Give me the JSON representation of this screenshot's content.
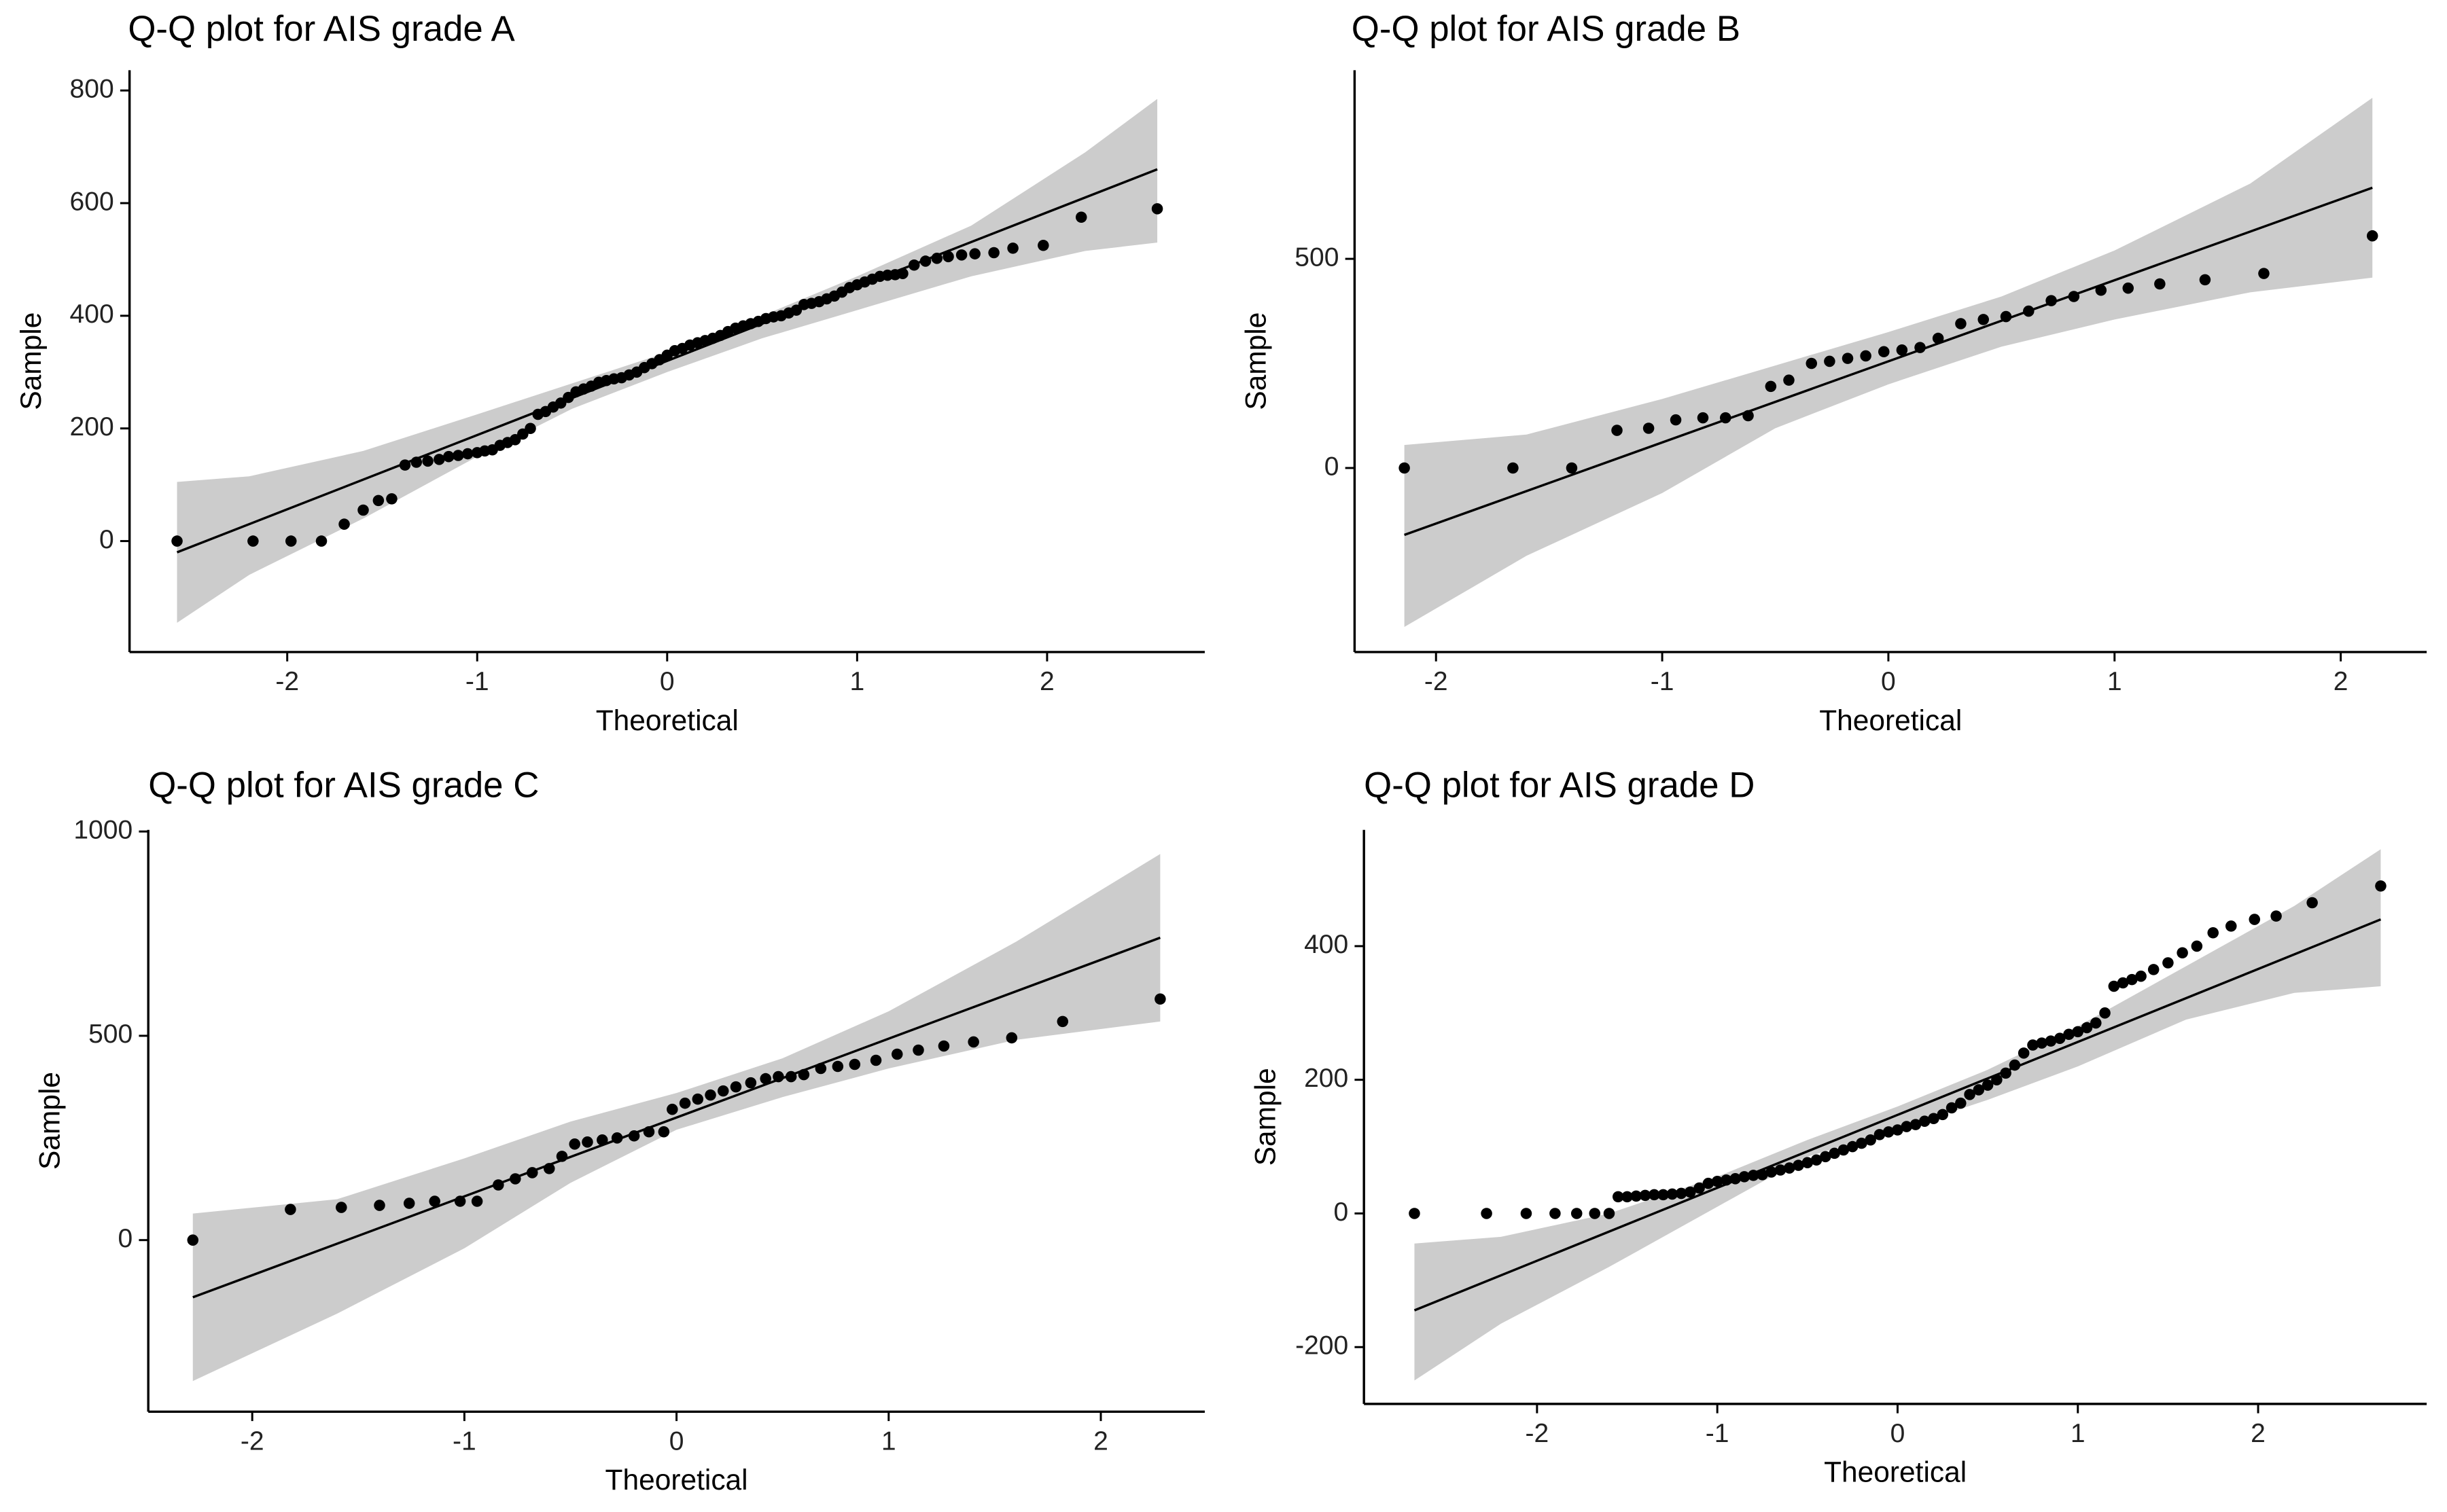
{
  "chart_data": [
    {
      "type": "scatter",
      "title": "Q-Q plot for AIS grade A",
      "x_label": "Theoretical",
      "y_label": "Sample",
      "xlim": [
        -2.83,
        2.83
      ],
      "ylim": [
        -197,
        836
      ],
      "xticks": [
        -2,
        -1,
        0,
        1,
        2
      ],
      "yticks": [
        0,
        200,
        400,
        600,
        800
      ],
      "point_color": "#000000",
      "line_color": "#000000",
      "band_color": "#cccccc",
      "points": {
        "x": [
          -2.58,
          -2.18,
          -1.98,
          -1.82,
          -1.7,
          -1.6,
          -1.52,
          -1.45,
          -1.38,
          -1.32,
          -1.26,
          -1.2,
          -1.15,
          -1.1,
          -1.05,
          -1.0,
          -0.96,
          -0.92,
          -0.88,
          -0.84,
          -0.8,
          -0.76,
          -0.72,
          -0.68,
          -0.64,
          -0.6,
          -0.56,
          -0.52,
          -0.48,
          -0.44,
          -0.4,
          -0.36,
          -0.32,
          -0.28,
          -0.24,
          -0.2,
          -0.16,
          -0.12,
          -0.08,
          -0.04,
          0,
          0.04,
          0.08,
          0.12,
          0.16,
          0.2,
          0.24,
          0.28,
          0.32,
          0.36,
          0.4,
          0.44,
          0.48,
          0.52,
          0.56,
          0.6,
          0.64,
          0.68,
          0.72,
          0.76,
          0.8,
          0.84,
          0.88,
          0.92,
          0.96,
          1.0,
          1.04,
          1.08,
          1.12,
          1.16,
          1.2,
          1.24,
          1.3,
          1.36,
          1.42,
          1.48,
          1.55,
          1.62,
          1.72,
          1.82,
          1.98,
          2.18,
          2.58
        ],
        "y": [
          0,
          0,
          0,
          0,
          30,
          55,
          72,
          75,
          135,
          140,
          142,
          145,
          150,
          152,
          155,
          157,
          160,
          162,
          170,
          175,
          180,
          190,
          200,
          225,
          230,
          238,
          245,
          255,
          265,
          270,
          275,
          282,
          285,
          288,
          290,
          295,
          300,
          308,
          315,
          322,
          330,
          338,
          342,
          348,
          352,
          356,
          360,
          365,
          372,
          378,
          382,
          386,
          390,
          395,
          398,
          400,
          405,
          410,
          420,
          422,
          425,
          430,
          435,
          442,
          450,
          455,
          460,
          465,
          470,
          472,
          473,
          475,
          490,
          497,
          502,
          505,
          508,
          510,
          512,
          520,
          525,
          575,
          590
        ]
      },
      "line": {
        "x": [
          -2.58,
          2.58
        ],
        "y": [
          -20,
          660
        ]
      },
      "band": {
        "x": [
          -2.58,
          -2.2,
          -1.6,
          -1,
          -0.5,
          0,
          0.5,
          1,
          1.6,
          2.2,
          2.58
        ],
        "upper": [
          105,
          115,
          160,
          225,
          280,
          335,
          400,
          470,
          560,
          690,
          785
        ],
        "lower": [
          -145,
          -60,
          40,
          150,
          235,
          300,
          360,
          410,
          470,
          515,
          530
        ]
      }
    },
    {
      "type": "scatter",
      "title": "Q-Q plot for AIS grade B",
      "x_label": "Theoretical",
      "y_label": "Sample",
      "xlim": [
        -2.36,
        2.38
      ],
      "ylim": [
        -440,
        951
      ],
      "xticks": [
        -2,
        -1,
        0,
        1,
        2
      ],
      "yticks": [
        0,
        500
      ],
      "point_color": "#000000",
      "line_color": "#000000",
      "band_color": "#cccccc",
      "points": {
        "x": [
          -2.14,
          -1.66,
          -1.4,
          -1.2,
          -1.06,
          -0.94,
          -0.82,
          -0.72,
          -0.62,
          -0.52,
          -0.44,
          -0.34,
          -0.26,
          -0.18,
          -0.1,
          -0.02,
          0.06,
          0.14,
          0.22,
          0.32,
          0.42,
          0.52,
          0.62,
          0.72,
          0.82,
          0.94,
          1.06,
          1.2,
          1.4,
          1.66,
          2.14
        ],
        "y": [
          0,
          0,
          0,
          90,
          95,
          115,
          120,
          120,
          125,
          195,
          210,
          250,
          255,
          262,
          268,
          278,
          282,
          288,
          310,
          345,
          355,
          362,
          375,
          400,
          410,
          425,
          430,
          440,
          450,
          465,
          555
        ]
      },
      "line": {
        "x": [
          -2.14,
          2.14
        ],
        "y": [
          -160,
          670
        ]
      },
      "band": {
        "x": [
          -2.14,
          -1.6,
          -1,
          -0.5,
          0,
          0.5,
          1,
          1.6,
          2.14
        ],
        "upper": [
          55,
          80,
          165,
          245,
          325,
          410,
          520,
          680,
          885
        ],
        "lower": [
          -380,
          -210,
          -60,
          95,
          200,
          290,
          355,
          420,
          455
        ]
      }
    },
    {
      "type": "scatter",
      "title": "Q-Q plot for AIS grade C",
      "x_label": "Theoretical",
      "y_label": "Sample",
      "xlim": [
        -2.49,
        2.49
      ],
      "ylim": [
        -420,
        1004
      ],
      "xticks": [
        -2,
        -1,
        0,
        1,
        2
      ],
      "yticks": [
        0,
        500,
        1000
      ],
      "point_color": "#000000",
      "line_color": "#000000",
      "band_color": "#cccccc",
      "points": {
        "x": [
          -2.28,
          -1.82,
          -1.58,
          -1.4,
          -1.26,
          -1.14,
          -1.02,
          -0.94,
          -0.84,
          -0.76,
          -0.68,
          -0.6,
          -0.54,
          -0.48,
          -0.42,
          -0.35,
          -0.28,
          -0.2,
          -0.13,
          -0.06,
          -0.02,
          0.04,
          0.1,
          0.16,
          0.22,
          0.28,
          0.35,
          0.42,
          0.48,
          0.54,
          0.6,
          0.68,
          0.76,
          0.84,
          0.94,
          1.04,
          1.14,
          1.26,
          1.4,
          1.58,
          1.82,
          2.28
        ],
        "y": [
          0,
          75,
          80,
          85,
          90,
          95,
          95,
          95,
          135,
          150,
          165,
          175,
          205,
          235,
          240,
          245,
          250,
          255,
          265,
          265,
          320,
          335,
          345,
          355,
          365,
          375,
          385,
          395,
          400,
          400,
          405,
          420,
          425,
          430,
          440,
          455,
          465,
          475,
          485,
          495,
          535,
          590
        ]
      },
      "line": {
        "x": [
          -2.28,
          2.28
        ],
        "y": [
          -140,
          740
        ]
      },
      "band": {
        "x": [
          -2.28,
          -1.6,
          -1,
          -0.5,
          0,
          0.5,
          1,
          1.6,
          2.28
        ],
        "upper": [
          65,
          100,
          200,
          290,
          360,
          445,
          560,
          730,
          945
        ],
        "lower": [
          -345,
          -180,
          -20,
          140,
          270,
          350,
          420,
          490,
          535
        ]
      }
    },
    {
      "type": "scatter",
      "title": "Q-Q plot for AIS grade D",
      "x_label": "Theoretical",
      "y_label": "Sample",
      "xlim": [
        -2.96,
        2.935
      ],
      "ylim": [
        -285,
        574
      ],
      "xticks": [
        -2,
        -1,
        0,
        1,
        2
      ],
      "yticks": [
        -200,
        0,
        200,
        400
      ],
      "point_color": "#000000",
      "line_color": "#000000",
      "band_color": "#cccccc",
      "points": {
        "x": [
          -2.68,
          -2.28,
          -2.06,
          -1.9,
          -1.78,
          -1.68,
          -1.6,
          -1.55,
          -1.5,
          -1.45,
          -1.4,
          -1.35,
          -1.3,
          -1.25,
          -1.2,
          -1.15,
          -1.1,
          -1.05,
          -1,
          -0.95,
          -0.9,
          -0.85,
          -0.8,
          -0.75,
          -0.7,
          -0.65,
          -0.6,
          -0.55,
          -0.5,
          -0.45,
          -0.4,
          -0.35,
          -0.3,
          -0.25,
          -0.2,
          -0.15,
          -0.1,
          -0.05,
          0,
          0.05,
          0.1,
          0.15,
          0.2,
          0.25,
          0.3,
          0.35,
          0.4,
          0.45,
          0.5,
          0.55,
          0.6,
          0.65,
          0.7,
          0.75,
          0.8,
          0.85,
          0.9,
          0.95,
          1,
          1.05,
          1.1,
          1.15,
          1.2,
          1.25,
          1.3,
          1.35,
          1.42,
          1.5,
          1.58,
          1.66,
          1.75,
          1.85,
          1.98,
          2.1,
          2.3,
          2.68
        ],
        "y": [
          0,
          0,
          0,
          0,
          0,
          0,
          0,
          25,
          25,
          26,
          27,
          28,
          28,
          29,
          30,
          32,
          38,
          45,
          48,
          50,
          52,
          55,
          57,
          58,
          62,
          65,
          68,
          72,
          76,
          80,
          85,
          90,
          95,
          100,
          105,
          110,
          118,
          122,
          125,
          130,
          133,
          138,
          142,
          148,
          158,
          165,
          178,
          185,
          192,
          200,
          210,
          222,
          240,
          252,
          255,
          258,
          262,
          268,
          272,
          278,
          285,
          300,
          340,
          345,
          350,
          355,
          365,
          375,
          390,
          400,
          420,
          430,
          440,
          445,
          465,
          490
        ]
      },
      "line": {
        "x": [
          -2.68,
          2.68
        ],
        "y": [
          -145,
          440
        ]
      },
      "band": {
        "x": [
          -2.68,
          -2.2,
          -1.6,
          -1,
          -0.5,
          0,
          0.5,
          1,
          1.6,
          2.2,
          2.68
        ],
        "upper": [
          -45,
          -35,
          0,
          55,
          110,
          160,
          215,
          280,
          370,
          460,
          545
        ],
        "lower": [
          -250,
          -165,
          -80,
          10,
          85,
          125,
          170,
          220,
          290,
          330,
          340
        ]
      }
    }
  ]
}
